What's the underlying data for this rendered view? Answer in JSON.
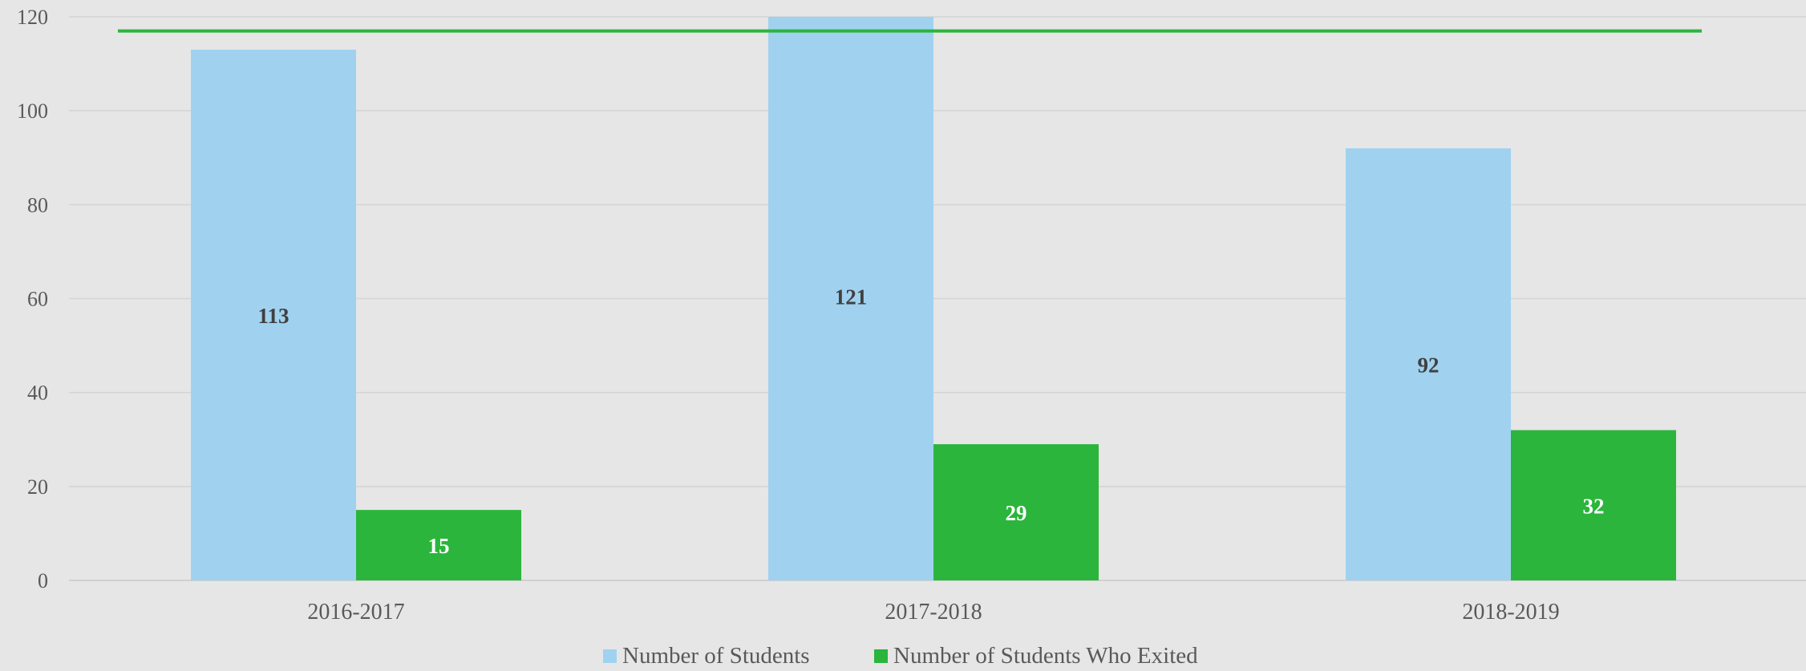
{
  "chart_data": {
    "type": "bar",
    "categories": [
      "2016-2017",
      "2017-2018",
      "2018-2019"
    ],
    "series": [
      {
        "name": "Number of Students",
        "values": [
          113,
          121,
          92
        ],
        "color": "#a0d2f0",
        "label_color": "#404040"
      },
      {
        "name": "Number of Students Who Exited",
        "values": [
          15,
          29,
          32
        ],
        "color": "#2bb53c",
        "label_color": "#ffffff"
      }
    ],
    "reference_line": {
      "value": 117,
      "color": "#2bb53c"
    },
    "ylim": [
      0,
      120
    ],
    "y_ticks": [
      0,
      20,
      40,
      60,
      80,
      100,
      120
    ],
    "grid": true,
    "legend_position": "bottom",
    "title": "",
    "xlabel": "",
    "ylabel": ""
  }
}
